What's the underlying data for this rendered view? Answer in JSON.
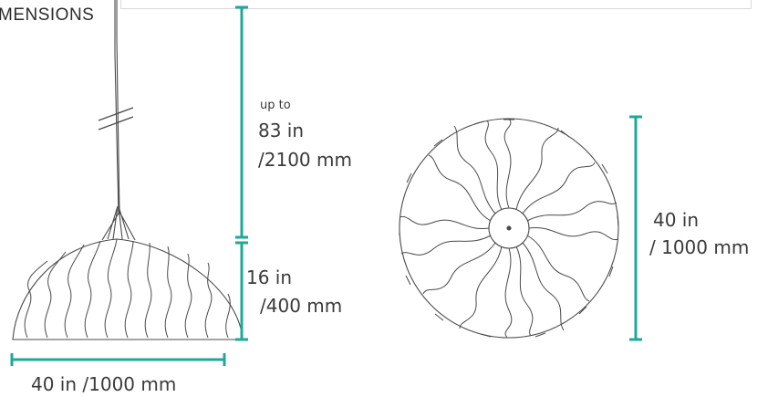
{
  "heading": "MENSIONS",
  "accent_color": "#1fa89a",
  "line_color": "#4a4a4a",
  "labels": {
    "cord_prefix": "up to",
    "cord_in": "83 in",
    "cord_mm": "/2100 mm",
    "shade_height_in": "16 in",
    "shade_height_mm": "/400 mm",
    "width_bottom": "40 in /1000 mm",
    "top_view_in": "40 in",
    "top_view_mm": "/ 1000 mm"
  }
}
